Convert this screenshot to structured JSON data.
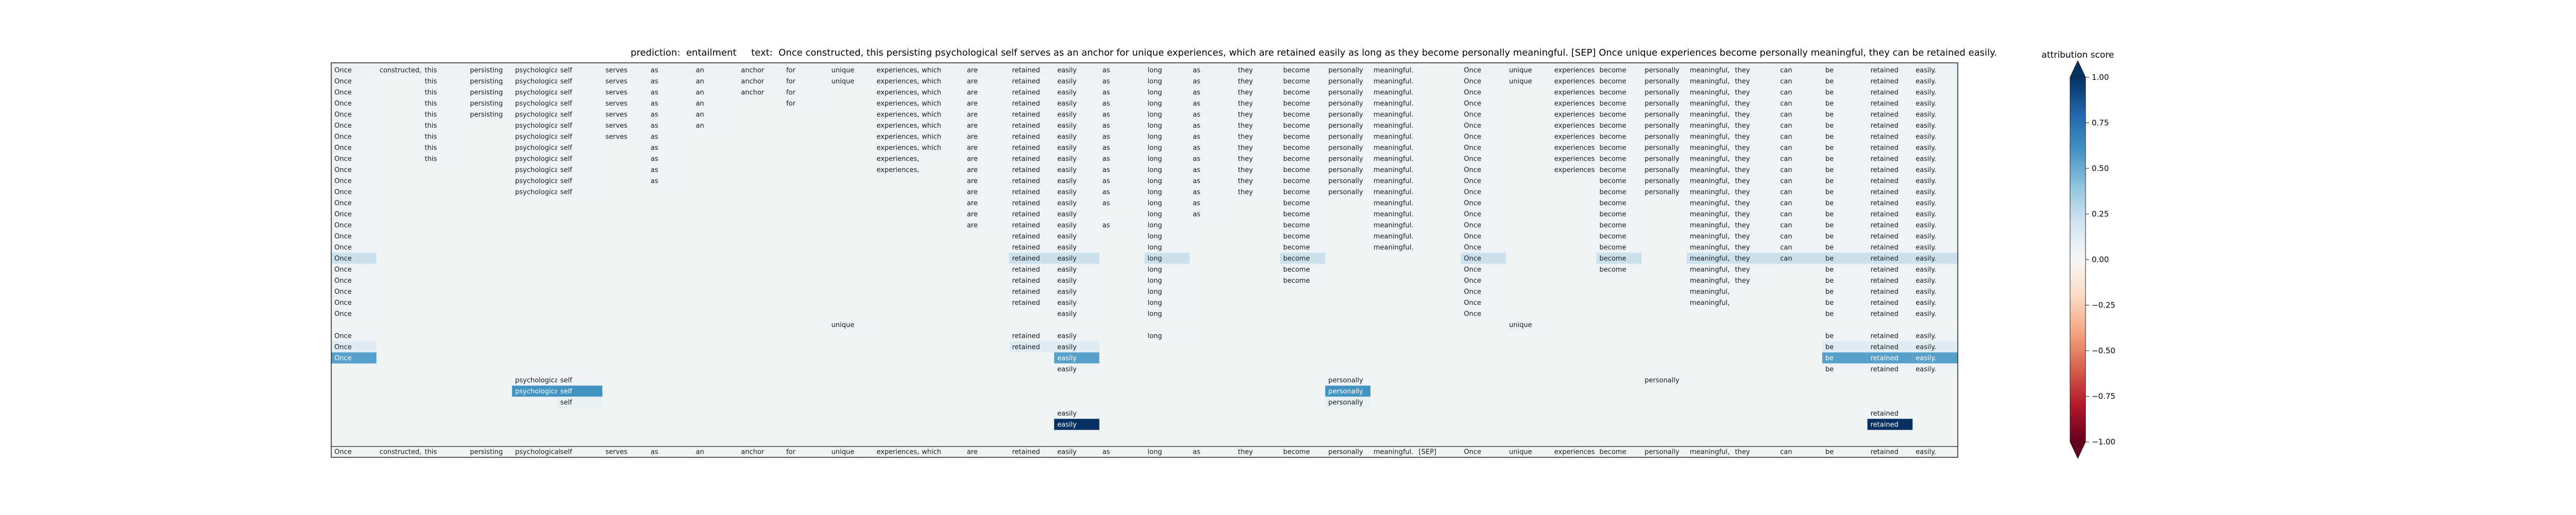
{
  "chart_data": {
    "type": "heatmap",
    "title": {
      "prediction_label": "prediction:",
      "prediction": "entailment",
      "text_label": "text:",
      "text": "Once constructed, this persisting psychological self serves as an anchor for unique experiences, which are retained easily as long as they become personally meaningful. [SEP] Once unique experiences become personally meaningful, they can be retained easily."
    },
    "tokens": [
      "Once",
      "constructed,",
      "this",
      "persisting",
      "psychological",
      "self",
      "serves",
      "as",
      "an",
      "anchor",
      "for",
      "unique",
      "experiences,",
      "which",
      "are",
      "retained",
      "easily",
      "as",
      "long",
      "as",
      "they",
      "become",
      "personally",
      "meaningful.",
      "[SEP]",
      "Once",
      "unique",
      "experiences",
      "become",
      "personally",
      "meaningful,",
      "they",
      "can",
      "be",
      "retained",
      "easily."
    ],
    "colorbar": {
      "label": "attribution score",
      "range": [
        -1.0,
        1.0
      ],
      "ticks": [
        "1.00",
        "0.75",
        "0.50",
        "0.25",
        "0.00",
        "−0.25",
        "−0.50",
        "−0.75",
        "−1.00"
      ],
      "tick_values": [
        1.0,
        0.75,
        0.5,
        0.25,
        0.0,
        -0.25,
        -0.5,
        -0.75,
        -1.0
      ],
      "colors": [
        "#67001f",
        "#b2182b",
        "#d6604d",
        "#f4a582",
        "#fddbc7",
        "#f7f7f7",
        "#d1e5f0",
        "#92c5de",
        "#4393c3",
        "#2166ac",
        "#053061"
      ]
    },
    "rows": [
      {
        "cells": {
          "0": 0.06,
          "1": 0.06,
          "2": 0.06,
          "3": 0.06,
          "4": 0.06,
          "5": 0.06,
          "6": 0.06,
          "7": 0.06,
          "8": 0.06,
          "9": 0.06,
          "10": 0.06,
          "11": 0.06,
          "12": 0.06,
          "13": 0.06,
          "14": 0.06,
          "15": 0.06,
          "16": 0.06,
          "17": 0.06,
          "18": 0.06,
          "19": 0.06,
          "20": 0.06,
          "21": 0.06,
          "22": 0.06,
          "23": 0.06,
          "25": 0.06,
          "26": 0.06,
          "27": 0.06,
          "28": 0.06,
          "29": 0.06,
          "30": 0.06,
          "31": 0.06,
          "32": 0.06,
          "33": 0.06,
          "34": 0.06,
          "35": 0.06
        }
      },
      {
        "cells": {
          "0": 0.05,
          "2": 0.05,
          "3": 0.05,
          "4": 0.05,
          "5": 0.05,
          "6": 0.05,
          "7": 0.05,
          "8": 0.05,
          "9": 0.05,
          "10": 0.05,
          "11": 0.05,
          "12": 0.05,
          "13": 0.05,
          "14": 0.05,
          "15": 0.05,
          "16": 0.05,
          "17": 0.05,
          "18": 0.05,
          "19": 0.05,
          "20": 0.05,
          "21": 0.05,
          "22": 0.05,
          "23": 0.05,
          "25": 0.05,
          "26": 0.05,
          "27": 0.05,
          "28": 0.05,
          "29": 0.05,
          "30": 0.05,
          "31": 0.05,
          "32": 0.05,
          "33": 0.05,
          "34": 0.05,
          "35": 0.05
        }
      },
      {
        "cells": {
          "0": 0.05,
          "2": 0.05,
          "3": 0.05,
          "4": 0.05,
          "5": 0.05,
          "6": 0.05,
          "7": 0.05,
          "8": 0.05,
          "9": 0.05,
          "10": 0.05,
          "12": 0.05,
          "13": 0.05,
          "14": 0.05,
          "15": 0.05,
          "16": 0.05,
          "17": 0.05,
          "18": 0.05,
          "19": 0.05,
          "20": 0.05,
          "21": 0.05,
          "22": 0.05,
          "23": 0.05,
          "25": 0.05,
          "27": 0.05,
          "28": 0.05,
          "29": 0.05,
          "30": 0.05,
          "31": 0.05,
          "32": 0.05,
          "33": 0.05,
          "34": 0.05,
          "35": 0.05
        }
      },
      {
        "cells": {
          "0": 0.05,
          "2": 0.05,
          "3": 0.05,
          "4": 0.05,
          "5": 0.05,
          "6": 0.05,
          "7": 0.05,
          "8": 0.05,
          "10": 0.05,
          "12": 0.05,
          "13": 0.05,
          "14": 0.05,
          "15": 0.05,
          "16": 0.05,
          "17": 0.05,
          "18": 0.05,
          "19": 0.05,
          "20": 0.05,
          "21": 0.05,
          "22": 0.05,
          "23": 0.05,
          "25": 0.05,
          "27": 0.05,
          "28": 0.05,
          "29": 0.05,
          "30": 0.05,
          "31": 0.05,
          "32": 0.05,
          "33": 0.05,
          "34": 0.05,
          "35": 0.05
        }
      },
      {
        "cells": {
          "0": 0.05,
          "2": 0.05,
          "3": 0.05,
          "4": 0.05,
          "5": 0.05,
          "6": 0.05,
          "7": 0.05,
          "8": 0.05,
          "12": 0.05,
          "13": 0.05,
          "14": 0.05,
          "15": 0.05,
          "16": 0.05,
          "17": 0.05,
          "18": 0.05,
          "19": 0.05,
          "20": 0.05,
          "21": 0.05,
          "22": 0.05,
          "23": 0.05,
          "25": 0.05,
          "27": 0.05,
          "28": 0.05,
          "29": 0.05,
          "30": 0.05,
          "31": 0.05,
          "32": 0.05,
          "33": 0.05,
          "34": 0.05,
          "35": 0.05
        }
      },
      {
        "cells": {
          "0": 0.05,
          "2": 0.05,
          "4": 0.05,
          "5": 0.05,
          "6": 0.05,
          "7": 0.05,
          "8": 0.05,
          "12": 0.05,
          "13": 0.05,
          "14": 0.05,
          "15": 0.05,
          "16": 0.05,
          "17": 0.05,
          "18": 0.05,
          "19": 0.05,
          "20": 0.05,
          "21": 0.05,
          "22": 0.05,
          "23": 0.05,
          "25": 0.05,
          "27": 0.05,
          "28": 0.05,
          "29": 0.05,
          "30": 0.05,
          "31": 0.05,
          "32": 0.05,
          "33": 0.05,
          "34": 0.05,
          "35": 0.05
        }
      },
      {
        "cells": {
          "0": 0.05,
          "2": 0.05,
          "4": 0.05,
          "5": 0.05,
          "6": 0.05,
          "7": 0.05,
          "12": 0.05,
          "13": 0.05,
          "14": 0.05,
          "15": 0.05,
          "16": 0.05,
          "17": 0.05,
          "18": 0.05,
          "19": 0.05,
          "20": 0.05,
          "21": 0.05,
          "22": 0.05,
          "23": 0.05,
          "25": 0.05,
          "27": 0.05,
          "28": 0.05,
          "29": 0.05,
          "30": 0.05,
          "31": 0.05,
          "32": 0.05,
          "33": 0.05,
          "34": 0.05,
          "35": 0.05
        }
      },
      {
        "cells": {
          "0": 0.05,
          "2": 0.05,
          "4": 0.05,
          "5": 0.05,
          "7": 0.05,
          "12": 0.05,
          "13": 0.05,
          "14": 0.05,
          "15": 0.05,
          "16": 0.05,
          "17": 0.05,
          "18": 0.05,
          "19": 0.05,
          "20": 0.05,
          "21": 0.05,
          "22": 0.05,
          "23": 0.05,
          "25": 0.05,
          "27": 0.05,
          "28": 0.05,
          "29": 0.05,
          "30": 0.05,
          "31": 0.05,
          "32": 0.05,
          "33": 0.05,
          "34": 0.05,
          "35": 0.05
        }
      },
      {
        "cells": {
          "0": 0.05,
          "2": 0.05,
          "4": 0.05,
          "5": 0.05,
          "7": 0.05,
          "12": 0.05,
          "14": 0.05,
          "15": 0.05,
          "16": 0.05,
          "17": 0.05,
          "18": 0.05,
          "19": 0.05,
          "20": 0.05,
          "21": 0.05,
          "22": 0.05,
          "23": 0.05,
          "25": 0.05,
          "27": 0.05,
          "28": 0.05,
          "29": 0.05,
          "30": 0.05,
          "31": 0.05,
          "32": 0.05,
          "33": 0.05,
          "34": 0.05,
          "35": 0.05
        }
      },
      {
        "cells": {
          "0": 0.05,
          "4": 0.05,
          "5": 0.05,
          "7": 0.05,
          "12": 0.05,
          "14": 0.05,
          "15": 0.05,
          "16": 0.05,
          "17": 0.05,
          "18": 0.05,
          "19": 0.05,
          "20": 0.05,
          "21": 0.05,
          "22": 0.05,
          "23": 0.05,
          "25": 0.05,
          "27": 0.05,
          "28": 0.05,
          "29": 0.05,
          "30": 0.05,
          "31": 0.05,
          "32": 0.05,
          "33": 0.05,
          "34": 0.05,
          "35": 0.05
        }
      },
      {
        "cells": {
          "0": 0.05,
          "4": 0.05,
          "5": 0.05,
          "7": 0.05,
          "14": 0.05,
          "15": 0.05,
          "16": 0.05,
          "17": 0.05,
          "18": 0.05,
          "19": 0.05,
          "20": 0.05,
          "21": 0.05,
          "22": 0.05,
          "23": 0.05,
          "25": 0.05,
          "28": 0.05,
          "29": 0.05,
          "30": 0.05,
          "31": 0.05,
          "32": 0.05,
          "33": 0.05,
          "34": 0.05,
          "35": 0.05
        }
      },
      {
        "cells": {
          "0": 0.05,
          "4": 0.05,
          "5": 0.05,
          "14": 0.05,
          "15": 0.05,
          "16": 0.05,
          "17": 0.05,
          "18": 0.05,
          "19": 0.05,
          "20": 0.05,
          "21": 0.05,
          "22": 0.05,
          "23": 0.05,
          "25": 0.05,
          "28": 0.05,
          "29": 0.05,
          "30": 0.05,
          "31": 0.05,
          "32": 0.05,
          "33": 0.05,
          "34": 0.05,
          "35": 0.05
        }
      },
      {
        "cells": {
          "0": 0.05,
          "14": 0.05,
          "15": 0.05,
          "16": 0.05,
          "17": 0.05,
          "18": 0.05,
          "19": 0.05,
          "21": 0.05,
          "23": 0.05,
          "25": 0.05,
          "28": 0.05,
          "30": 0.05,
          "31": 0.05,
          "32": 0.05,
          "33": 0.05,
          "34": 0.05,
          "35": 0.05
        }
      },
      {
        "cells": {
          "0": 0.05,
          "14": 0.05,
          "15": 0.05,
          "16": 0.05,
          "18": 0.05,
          "19": 0.05,
          "21": 0.05,
          "23": 0.05,
          "25": 0.05,
          "28": 0.05,
          "30": 0.05,
          "31": 0.05,
          "32": 0.05,
          "33": 0.05,
          "34": 0.05,
          "35": 0.05
        }
      },
      {
        "cells": {
          "0": 0.05,
          "14": 0.05,
          "15": 0.05,
          "16": 0.05,
          "17": 0.05,
          "18": 0.05,
          "21": 0.05,
          "23": 0.05,
          "25": 0.05,
          "28": 0.05,
          "30": 0.05,
          "31": 0.05,
          "32": 0.05,
          "33": 0.05,
          "34": 0.05,
          "35": 0.05
        }
      },
      {
        "cells": {
          "0": 0.05,
          "15": 0.05,
          "16": 0.05,
          "18": 0.05,
          "21": 0.05,
          "23": 0.05,
          "25": 0.05,
          "28": 0.05,
          "30": 0.05,
          "31": 0.05,
          "32": 0.05,
          "33": 0.05,
          "34": 0.05,
          "35": 0.05
        }
      },
      {
        "cells": {
          "0": 0.05,
          "15": 0.05,
          "16": 0.05,
          "18": 0.05,
          "21": 0.05,
          "23": 0.05,
          "25": 0.05,
          "28": 0.05,
          "30": 0.05,
          "31": 0.05,
          "32": 0.05,
          "33": 0.05,
          "34": 0.05,
          "35": 0.05
        }
      },
      {
        "cells": {
          "0": 0.22,
          "15": 0.22,
          "16": 0.22,
          "18": 0.22,
          "21": 0.22,
          "25": 0.22,
          "28": 0.22,
          "30": 0.22,
          "31": 0.22,
          "32": 0.22,
          "33": 0.22,
          "34": 0.22,
          "35": 0.22
        }
      },
      {
        "cells": {
          "0": 0.05,
          "15": 0.05,
          "16": 0.05,
          "18": 0.05,
          "21": 0.05,
          "25": 0.05,
          "28": 0.05,
          "30": 0.05,
          "31": 0.05,
          "33": 0.05,
          "34": 0.05,
          "35": 0.05
        }
      },
      {
        "cells": {
          "0": 0.05,
          "15": 0.05,
          "16": 0.05,
          "18": 0.05,
          "21": 0.05,
          "25": 0.05,
          "30": 0.05,
          "31": 0.05,
          "33": 0.05,
          "34": 0.05,
          "35": 0.05
        }
      },
      {
        "cells": {
          "0": 0.05,
          "15": 0.05,
          "16": 0.05,
          "18": 0.05,
          "25": 0.05,
          "30": 0.05,
          "33": 0.05,
          "34": 0.05,
          "35": 0.05
        }
      },
      {
        "cells": {
          "0": 0.05,
          "15": 0.05,
          "16": 0.05,
          "18": 0.05,
          "25": 0.05,
          "30": 0.05,
          "33": 0.05,
          "34": 0.05,
          "35": 0.05
        }
      },
      {
        "cells": {
          "0": 0.05,
          "16": 0.05,
          "18": 0.05,
          "25": 0.05,
          "33": 0.05,
          "34": 0.05,
          "35": 0.05
        }
      },
      {
        "cells": {
          "11": 0.05,
          "26": 0.05
        }
      },
      {
        "cells": {
          "0": 0.05,
          "15": 0.05,
          "16": 0.05,
          "18": 0.05,
          "33": 0.05,
          "34": 0.05,
          "35": 0.05
        }
      },
      {
        "cells": {
          "0": 0.12,
          "15": 0.12,
          "16": 0.12,
          "33": 0.12,
          "34": 0.12,
          "35": 0.12
        }
      },
      {
        "cells": {
          "0": 0.55,
          "16": 0.55,
          "33": 0.55,
          "34": 0.55,
          "35": 0.55
        }
      },
      {
        "cells": {
          "16": 0.05,
          "33": 0.05,
          "34": 0.05,
          "35": 0.05
        }
      },
      {
        "cells": {
          "4": 0.05,
          "5": 0.05,
          "22": 0.05,
          "29": 0.05
        }
      },
      {
        "cells": {
          "4": 0.6,
          "5": 0.6,
          "22": 0.6
        }
      },
      {
        "cells": {
          "5": 0.08,
          "22": 0.08
        }
      },
      {
        "cells": {
          "16": 0.05,
          "34": 0.05
        }
      },
      {
        "cells": {
          "16": 1.0,
          "34": 1.0
        }
      }
    ]
  }
}
